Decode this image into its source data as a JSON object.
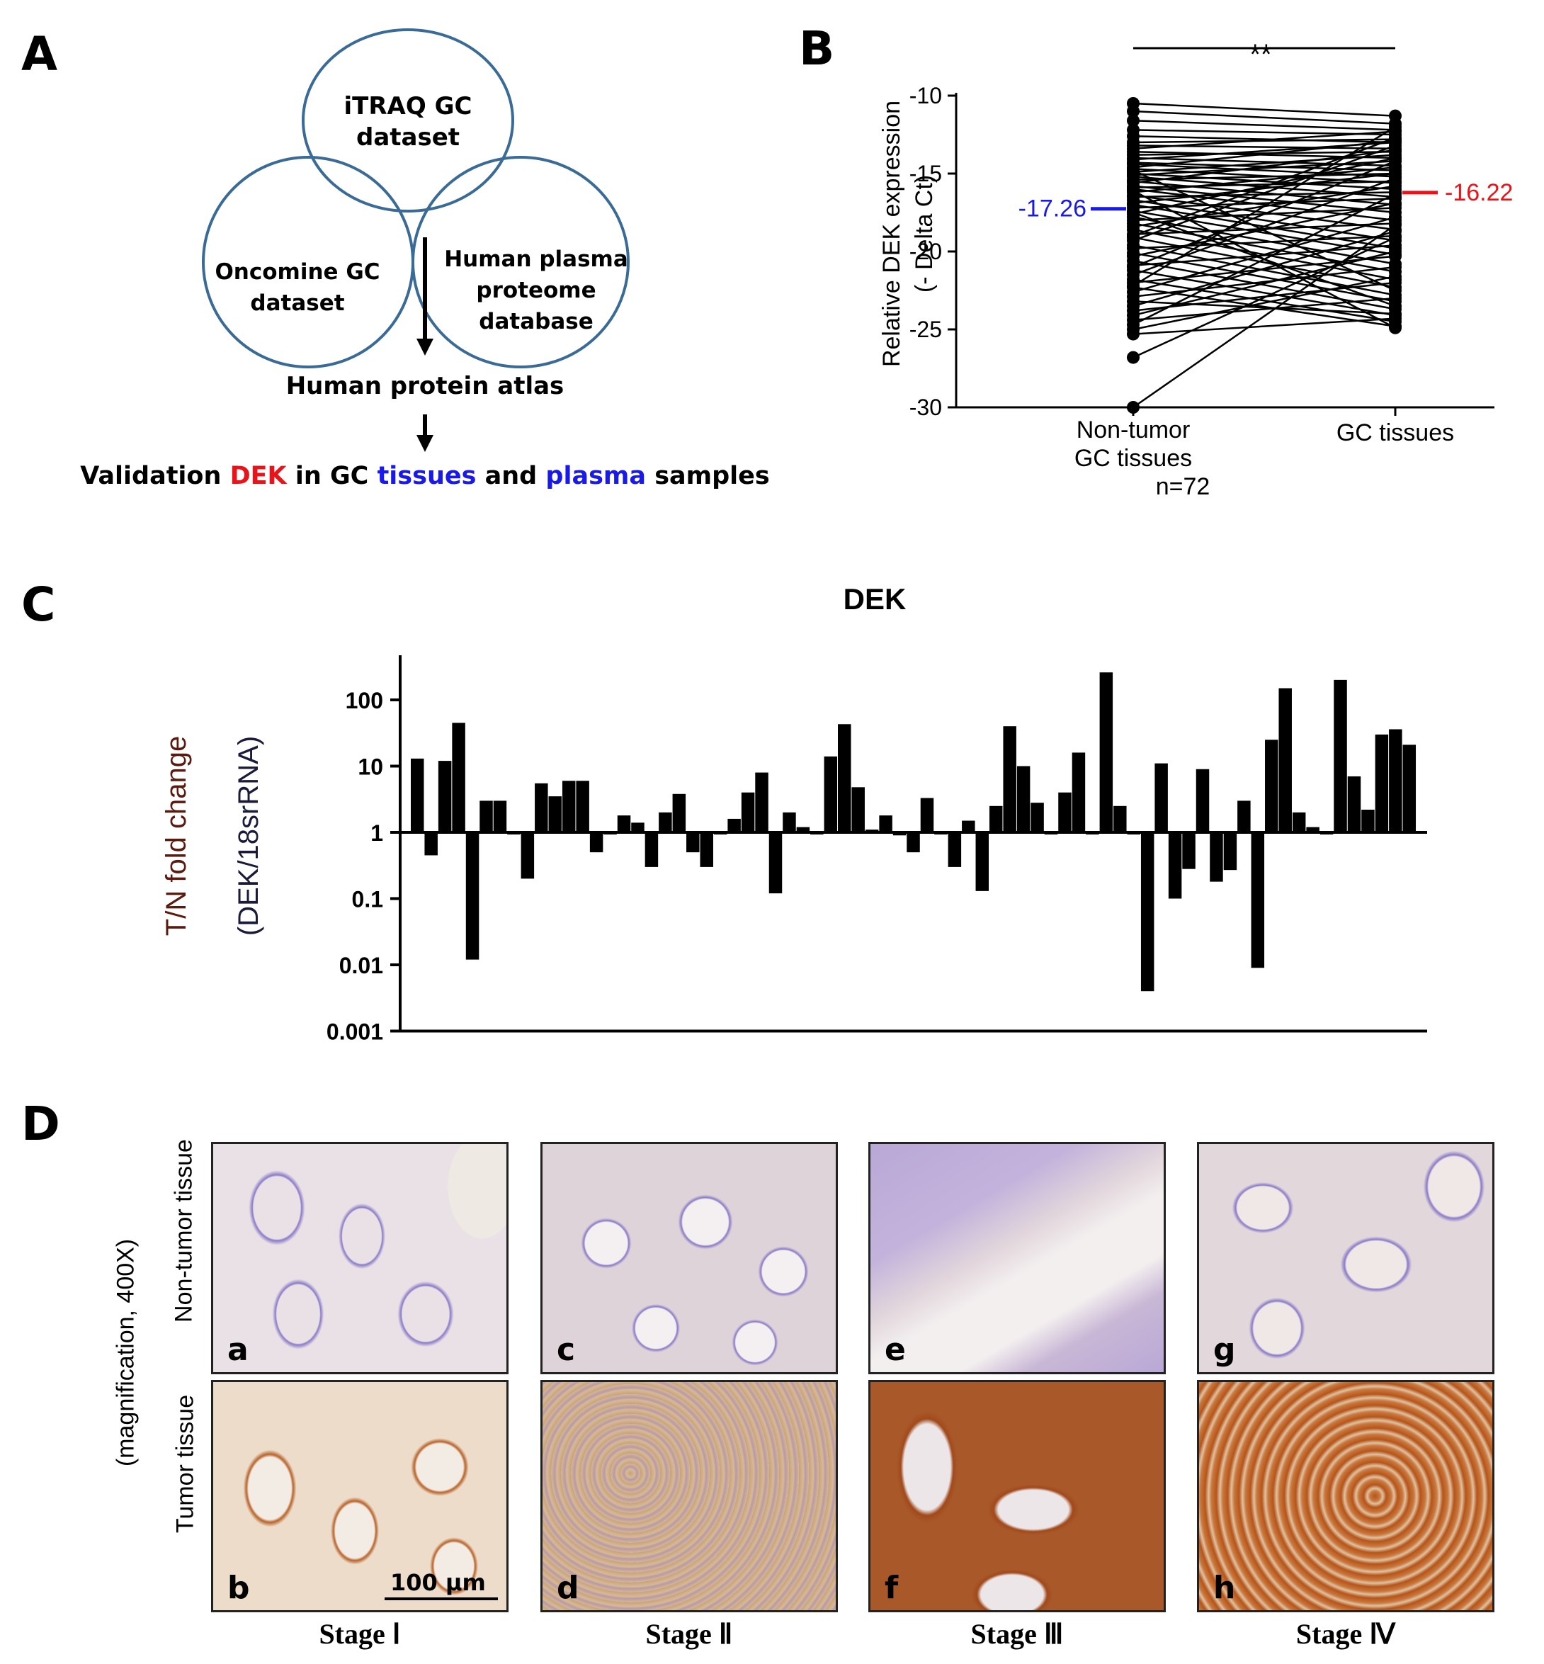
{
  "panels": {
    "A": {
      "letter": "A",
      "circles": [
        "iTRAQ GC dataset",
        "Oncomine GC dataset",
        "Human plasma proteome database"
      ],
      "circle_lines": {
        "top": [
          "iTRAQ GC",
          "dataset"
        ],
        "left": [
          "Oncomine GC",
          "dataset"
        ],
        "right": [
          "Human plasma",
          "proteome",
          "database"
        ]
      },
      "step1": "Human protein atlas",
      "validation": {
        "w1": "Validation ",
        "w2": "DEK",
        "w3": " in GC ",
        "w4": "tissues",
        "w5": " and ",
        "w6": "plasma",
        "w7": " samples"
      },
      "colors": {
        "circle": "#3a6a96",
        "red": "#e8141a",
        "blue": "#1a1ae8"
      }
    },
    "B": {
      "letter": "B"
    },
    "C": {
      "letter": "C"
    },
    "D": {
      "letter": "D",
      "y_label": "(magnification, 400X)",
      "row_labels": [
        "Non-tumor tissue",
        "Tumor tissue"
      ],
      "tile_labels": [
        "a",
        "b",
        "c",
        "d",
        "e",
        "f",
        "g",
        "h"
      ],
      "stages": [
        "Stage Ⅰ",
        "Stage Ⅱ",
        "Stage Ⅲ",
        "Stage Ⅳ"
      ],
      "scale_bar": "100 μm",
      "stain_colors": {
        "hematoxylin": "#7a6ac0",
        "dab_weak": "#d8b48a",
        "dab_strong": "#b5551a"
      }
    }
  },
  "chart_data": [
    {
      "panel": "B",
      "type": "scatter",
      "subtype": "paired",
      "categories": [
        "Non-tumor GC tissues",
        "GC tissues"
      ],
      "category_lines": [
        [
          "Non-tumor",
          "GC tissues"
        ],
        [
          "GC tissues"
        ]
      ],
      "ylabel": "Relative DEK expression",
      "ylabel2": "(- Delta Ct)",
      "ylim": [
        -30,
        -10
      ],
      "yticks": [
        -10,
        -15,
        -20,
        -25,
        -30
      ],
      "n_label": "n=72",
      "significance": "**",
      "means": [
        {
          "category": "Non-tumor GC tissues",
          "value": -17.26,
          "label": "-17.26",
          "color": "#1a1ae8"
        },
        {
          "category": "GC tissues",
          "value": -16.22,
          "label": "-16.22",
          "color": "#e8141a"
        }
      ],
      "pairs_approx": [
        [
          -10.5,
          -11.3
        ],
        [
          -11.0,
          -11.8
        ],
        [
          -11.6,
          -12.2
        ],
        [
          -12.2,
          -12.5
        ],
        [
          -12.6,
          -13.0
        ],
        [
          -13.0,
          -12.8
        ],
        [
          -13.2,
          -13.4
        ],
        [
          -13.4,
          -12.3
        ],
        [
          -13.6,
          -14.0
        ],
        [
          -13.8,
          -13.6
        ],
        [
          -14.0,
          -14.5
        ],
        [
          -14.1,
          -13.0
        ],
        [
          -14.3,
          -14.8
        ],
        [
          -14.4,
          -15.2
        ],
        [
          -14.6,
          -12.9
        ],
        [
          -14.7,
          -15.6
        ],
        [
          -14.9,
          -13.8
        ],
        [
          -15.0,
          -16.0
        ],
        [
          -15.1,
          -14.2
        ],
        [
          -15.2,
          -16.5
        ],
        [
          -15.4,
          -15.0
        ],
        [
          -15.5,
          -17.0
        ],
        [
          -15.6,
          -13.5
        ],
        [
          -15.8,
          -17.5
        ],
        [
          -15.9,
          -15.5
        ],
        [
          -16.0,
          -18.0
        ],
        [
          -16.2,
          -14.6
        ],
        [
          -16.4,
          -18.6
        ],
        [
          -16.5,
          -16.2
        ],
        [
          -16.7,
          -19.3
        ],
        [
          -16.9,
          -15.0
        ],
        [
          -17.0,
          -19.8
        ],
        [
          -17.2,
          -16.6
        ],
        [
          -17.4,
          -20.2
        ],
        [
          -17.6,
          -14.0
        ],
        [
          -17.8,
          -20.8
        ],
        [
          -18.0,
          -17.2
        ],
        [
          -18.2,
          -21.3
        ],
        [
          -18.4,
          -15.8
        ],
        [
          -18.6,
          -21.8
        ],
        [
          -18.9,
          -18.2
        ],
        [
          -19.1,
          -22.3
        ],
        [
          -19.3,
          -13.2
        ],
        [
          -19.6,
          -22.8
        ],
        [
          -19.8,
          -19.0
        ],
        [
          -20.1,
          -23.2
        ],
        [
          -20.3,
          -16.9
        ],
        [
          -20.6,
          -23.7
        ],
        [
          -20.9,
          -19.6
        ],
        [
          -21.2,
          -24.1
        ],
        [
          -21.5,
          -15.3
        ],
        [
          -21.8,
          -24.5
        ],
        [
          -22.0,
          -20.3
        ],
        [
          -22.3,
          -24.8
        ],
        [
          -22.6,
          -17.8
        ],
        [
          -22.9,
          -21.0
        ],
        [
          -23.2,
          -24.0
        ],
        [
          -23.5,
          -18.7
        ],
        [
          -23.8,
          -22.0
        ],
        [
          -24.1,
          -20.0
        ],
        [
          -24.4,
          -23.0
        ],
        [
          -24.7,
          -16.3
        ],
        [
          -25.0,
          -21.6
        ],
        [
          -25.3,
          -24.3
        ],
        [
          -22.2,
          -12.0
        ],
        [
          -21.0,
          -14.2
        ],
        [
          -19.0,
          -12.7
        ],
        [
          -17.5,
          -23.5
        ],
        [
          -16.1,
          -24.9
        ],
        [
          -14.8,
          -22.5
        ],
        [
          -26.8,
          -19.1
        ],
        [
          -30.0,
          -18.3
        ]
      ]
    },
    {
      "panel": "C",
      "type": "bar",
      "title": "DEK",
      "ylabel": "T/N fold change",
      "ylabel2": "(DEK/18srRNA)",
      "yscale": "log",
      "ylim": [
        0.001,
        500
      ],
      "yticks": [
        100,
        10,
        1,
        0.1,
        0.01,
        0.001
      ],
      "ytick_labels": [
        "100",
        "10",
        "1",
        "0.1",
        "0.01",
        "0.001"
      ],
      "baseline": 1,
      "values": [
        13,
        0.45,
        12,
        45,
        0.012,
        3,
        3,
        1,
        0.2,
        5.5,
        3.5,
        6,
        6,
        0.5,
        1,
        1.8,
        1.4,
        0.3,
        2,
        3.8,
        0.5,
        0.3,
        1,
        1.6,
        4,
        8,
        0.12,
        2,
        1.2,
        1,
        14,
        43,
        4.8,
        1.1,
        1.8,
        0.9,
        0.5,
        3.3,
        0.95,
        0.3,
        1.5,
        0.13,
        2.5,
        40,
        10,
        2.8,
        0.95,
        4,
        16,
        1,
        260,
        2.5,
        1,
        0.004,
        11,
        0.1,
        0.28,
        9,
        0.18,
        0.27,
        3,
        0.009,
        25,
        150,
        2,
        1.2,
        1,
        200,
        7,
        2.2,
        30,
        36,
        21
      ]
    }
  ]
}
